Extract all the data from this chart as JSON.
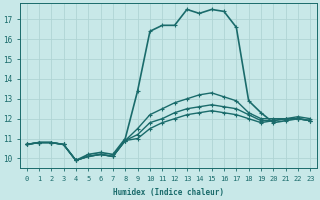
{
  "xlabel": "Humidex (Indice chaleur)",
  "background_color": "#c8e8e8",
  "grid_color": "#b0d4d4",
  "line_color": "#1a6b6b",
  "xlim": [
    -0.5,
    23.5
  ],
  "ylim": [
    9.5,
    17.8
  ],
  "yticks": [
    10,
    11,
    12,
    13,
    14,
    15,
    16,
    17
  ],
  "xticks": [
    0,
    1,
    2,
    3,
    4,
    5,
    6,
    7,
    8,
    9,
    10,
    11,
    12,
    13,
    14,
    15,
    16,
    17,
    18,
    19,
    20,
    21,
    22,
    23
  ],
  "series": [
    [
      10.7,
      10.8,
      10.8,
      10.7,
      9.9,
      10.1,
      10.2,
      10.1,
      10.9,
      11.0,
      11.5,
      11.8,
      12.0,
      12.2,
      12.3,
      12.4,
      12.3,
      12.2,
      12.0,
      11.8,
      11.9,
      12.0,
      12.0,
      11.9
    ],
    [
      10.7,
      10.8,
      10.8,
      10.7,
      9.9,
      10.1,
      10.2,
      10.1,
      10.9,
      11.2,
      11.8,
      12.0,
      12.3,
      12.5,
      12.6,
      12.7,
      12.6,
      12.5,
      12.2,
      11.9,
      11.9,
      12.0,
      12.0,
      11.9
    ],
    [
      10.7,
      10.8,
      10.8,
      10.7,
      9.9,
      10.1,
      10.2,
      10.1,
      10.9,
      11.5,
      12.2,
      12.5,
      12.8,
      13.0,
      13.2,
      13.3,
      13.1,
      12.9,
      12.3,
      12.0,
      12.0,
      12.0,
      12.1,
      12.0
    ],
    [
      10.7,
      10.8,
      10.8,
      10.7,
      9.9,
      10.2,
      10.3,
      10.2,
      11.0,
      13.4,
      16.4,
      16.7,
      16.7,
      17.5,
      17.3,
      17.5,
      17.4,
      16.6,
      12.9,
      12.3,
      11.8,
      11.9,
      12.0,
      11.9
    ]
  ]
}
